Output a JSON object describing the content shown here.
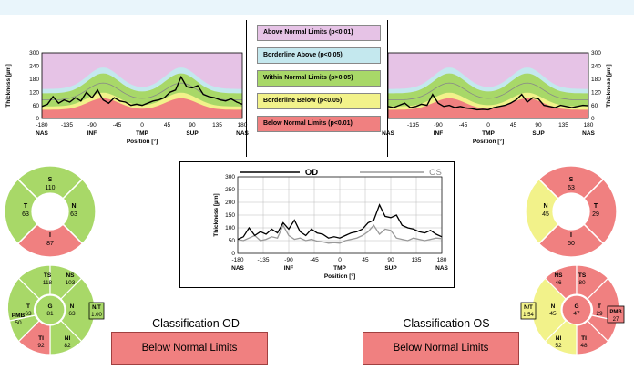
{
  "colors": {
    "above": "#e6c3e6",
    "borderline_above": "#c4e8ee",
    "within": "#a8d868",
    "borderline_below": "#f2f28a",
    "below": "#f08080",
    "od_line": "#000000",
    "os_line": "#999999"
  },
  "legend": [
    {
      "label": "Above Normal Limits (p<0.01)",
      "color": "#e6c3e6"
    },
    {
      "label": "Borderline Above (p<0.05)",
      "color": "#c4e8ee"
    },
    {
      "label": "Within Normal Limits (p>0.05)",
      "color": "#a8d868"
    },
    {
      "label": "Borderline Below (p<0.05)",
      "color": "#f2f28a"
    },
    {
      "label": "Below Normal Limits (p<0.01)",
      "color": "#f08080"
    }
  ],
  "chart_data": [
    {
      "id": "od_tsnit",
      "type": "line",
      "ylabel": "Thickness [µm]",
      "xlabel": "",
      "ylim": [
        0,
        300
      ],
      "xlim": [
        -180,
        180
      ],
      "yticks": [
        "0",
        "60",
        "120",
        "180",
        "240",
        "300"
      ],
      "xticks": [
        "-180",
        "-135",
        "-90",
        "-45",
        "0",
        "45",
        "90",
        "135",
        "180"
      ],
      "region_labels": [
        "NAS",
        "INF",
        "TMP",
        "SUP",
        "NAS"
      ],
      "series": [
        {
          "x": [
            -180,
            -170,
            -160,
            -150,
            -140,
            -130,
            -120,
            -110,
            -100,
            -90,
            -80,
            -70,
            -60,
            -50,
            -40,
            -30,
            -20,
            -10,
            0,
            10,
            20,
            30,
            40,
            50,
            60,
            70,
            80,
            90,
            100,
            110,
            120,
            130,
            140,
            150,
            160,
            170,
            180
          ],
          "y": [
            55,
            65,
            100,
            70,
            85,
            75,
            95,
            80,
            120,
            95,
            130,
            85,
            70,
            95,
            80,
            75,
            60,
            65,
            60,
            70,
            80,
            85,
            95,
            120,
            130,
            190,
            145,
            140,
            150,
            110,
            100,
            95,
            85,
            80,
            90,
            75,
            65
          ]
        }
      ]
    },
    {
      "id": "os_tsnit",
      "type": "line",
      "ylabel": "Thickness [µm]",
      "xlabel": "",
      "ylim": [
        0,
        300
      ],
      "xlim": [
        -180,
        180
      ],
      "yticks": [
        "0",
        "60",
        "120",
        "180",
        "240",
        "300"
      ],
      "xticks": [
        "-135",
        "-90",
        "-45",
        "0",
        "45",
        "90",
        "135",
        "180"
      ],
      "region_labels": [
        "NAS",
        "INF",
        "TMP",
        "SUP",
        "NAS"
      ],
      "series": [
        {
          "x": [
            -180,
            -170,
            -160,
            -150,
            -140,
            -130,
            -120,
            -110,
            -100,
            -90,
            -80,
            -70,
            -60,
            -50,
            -40,
            -30,
            -20,
            -10,
            0,
            10,
            20,
            30,
            40,
            50,
            60,
            70,
            80,
            90,
            100,
            110,
            120,
            130,
            140,
            150,
            160,
            170,
            180
          ],
          "y": [
            55,
            50,
            60,
            70,
            50,
            55,
            65,
            60,
            110,
            70,
            55,
            60,
            50,
            55,
            48,
            45,
            40,
            42,
            40,
            50,
            55,
            60,
            70,
            85,
            110,
            75,
            95,
            90,
            60,
            55,
            50,
            60,
            55,
            50,
            55,
            60,
            58
          ]
        }
      ]
    },
    {
      "id": "combined",
      "type": "line",
      "ylabel": "Thickness [µm]",
      "xlabel": "Position [°]",
      "ylim": [
        0,
        300
      ],
      "xlim": [
        -180,
        180
      ],
      "yticks": [
        "0",
        "50",
        "100",
        "150",
        "200",
        "250",
        "300"
      ],
      "xticks": [
        "-180",
        "-135",
        "-90",
        "-45",
        "0",
        "45",
        "90",
        "135",
        "180"
      ],
      "region_labels": [
        "NAS",
        "INF",
        "TMP",
        "SUP",
        "NAS"
      ],
      "series": [
        {
          "name": "OD",
          "x": [
            -180,
            -170,
            -160,
            -150,
            -140,
            -130,
            -120,
            -110,
            -100,
            -90,
            -80,
            -70,
            -60,
            -50,
            -40,
            -30,
            -20,
            -10,
            0,
            10,
            20,
            30,
            40,
            50,
            60,
            70,
            80,
            90,
            100,
            110,
            120,
            130,
            140,
            150,
            160,
            170,
            180
          ],
          "y": [
            55,
            65,
            100,
            70,
            85,
            75,
            95,
            80,
            120,
            95,
            130,
            85,
            70,
            95,
            80,
            75,
            60,
            65,
            60,
            70,
            80,
            85,
            95,
            120,
            130,
            190,
            145,
            140,
            150,
            110,
            100,
            95,
            85,
            80,
            90,
            75,
            65
          ]
        },
        {
          "name": "OS",
          "x": [
            -180,
            -170,
            -160,
            -150,
            -140,
            -130,
            -120,
            -110,
            -100,
            -90,
            -80,
            -70,
            -60,
            -50,
            -40,
            -30,
            -20,
            -10,
            0,
            10,
            20,
            30,
            40,
            50,
            60,
            70,
            80,
            90,
            100,
            110,
            120,
            130,
            140,
            150,
            160,
            170,
            180
          ],
          "y": [
            55,
            50,
            60,
            70,
            50,
            55,
            65,
            60,
            110,
            70,
            55,
            60,
            50,
            55,
            48,
            45,
            40,
            42,
            40,
            50,
            55,
            60,
            70,
            85,
            110,
            75,
            95,
            90,
            60,
            55,
            50,
            60,
            55,
            50,
            55,
            60,
            58
          ]
        }
      ]
    }
  ],
  "pos_label": "Position [°]",
  "od": {
    "quadrants": {
      "S": "110",
      "N": "63",
      "I": "87",
      "T": "63"
    },
    "sectors": {
      "TS": "118",
      "NS": "103",
      "N": "63",
      "NI": "82",
      "TI": "92",
      "T": "63",
      "G": "81",
      "PMB": "50",
      "NT": "1.00"
    },
    "classification_title": "Classification OD",
    "classification_value": "Below Normal Limits"
  },
  "os": {
    "quadrants": {
      "S": "63",
      "T": "29",
      "I": "50",
      "N": "45"
    },
    "sectors": {
      "NS": "46",
      "TS": "80",
      "T": "29",
      "TI": "48",
      "NI": "52",
      "N": "45",
      "G": "47",
      "PMB": "27",
      "NT": "1.54"
    },
    "classification_title": "Classification OS",
    "classification_value": "Below Normal Limits"
  },
  "legend_od": "OD",
  "legend_os": "OS"
}
